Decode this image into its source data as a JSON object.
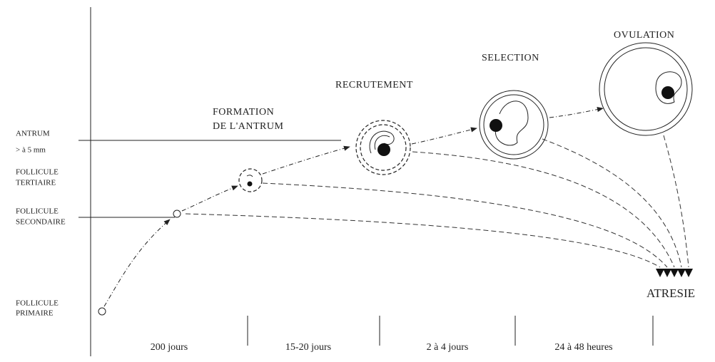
{
  "axis_labels": [
    [
      "ANTRUM"
    ],
    [
      "> à 5 mm"
    ],
    [
      "FOLLICULE",
      "TERTIAIRE"
    ],
    [
      "FOLLICULE",
      "SECONDAIRE"
    ],
    [
      "FOLLICULE",
      "PRIMAIRE"
    ]
  ],
  "stages": {
    "formation": [
      "FORMATION",
      "DE L'ANTRUM"
    ],
    "recrutement": "RECRUTEMENT",
    "selection": "SELECTION",
    "ovulation": "OVULATION"
  },
  "outcome": "ATRESIE",
  "durations": [
    "200 jours",
    "15-20 jours",
    "2 à 4 jours",
    "24 à 48 heures"
  ]
}
